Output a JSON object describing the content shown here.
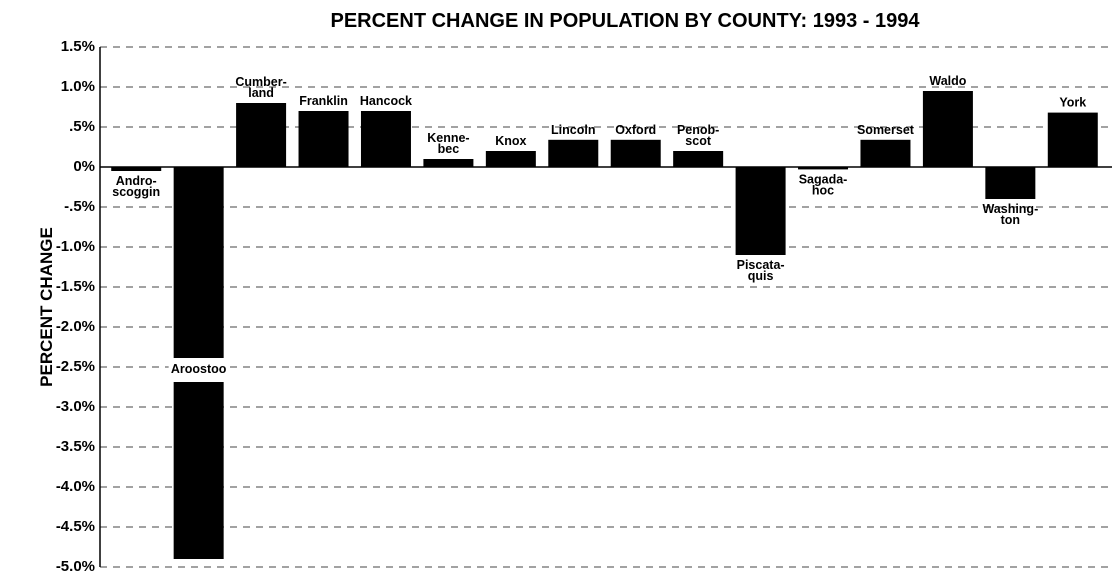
{
  "chart_data": {
    "type": "bar",
    "title": "PERCENT CHANGE IN POPULATION BY COUNTY: 1993 - 1994",
    "y_label": "PERCENT CHANGE",
    "categories": [
      "Andro-\nscoggin",
      "Aroostoo",
      "Cumber-\nland",
      "Franklin",
      "Hancock",
      "Kenne-\nbec",
      "Knox",
      "Lincoln",
      "Oxford",
      "Penob-\nscot",
      "Piscata-\nquis",
      "Sagada-\nhoc",
      "Somerset",
      "Waldo",
      "Washing-\nton",
      "York"
    ],
    "values": [
      -0.05,
      -4.9,
      0.8,
      0.7,
      0.7,
      0.1,
      0.2,
      0.34,
      0.34,
      0.2,
      -1.1,
      -0.03,
      0.34,
      0.95,
      -0.4,
      0.68
    ],
    "color": "#000000",
    "ylim": [
      -5.0,
      1.5
    ],
    "yticks": [
      {
        "value": 1.5,
        "label": "1.5%"
      },
      {
        "value": 1.0,
        "label": "1.0%"
      },
      {
        "value": 0.5,
        "label": ".5%"
      },
      {
        "value": 0,
        "label": "0%"
      },
      {
        "value": -0.5,
        "label": "-.5%"
      },
      {
        "value": -1.0,
        "label": "-1.0%"
      },
      {
        "value": -1.5,
        "label": "-1.5%"
      },
      {
        "value": -2.0,
        "label": "-2.0%"
      },
      {
        "value": -2.5,
        "label": "-2.5%"
      },
      {
        "value": -3.0,
        "label": "-3.0%"
      },
      {
        "value": -3.5,
        "label": "-3.5%"
      },
      {
        "value": -4.0,
        "label": "-4.0%"
      },
      {
        "value": -4.5,
        "label": "-4.5%"
      },
      {
        "value": -5.0,
        "label": "-5.0%"
      }
    ],
    "grid": true
  }
}
